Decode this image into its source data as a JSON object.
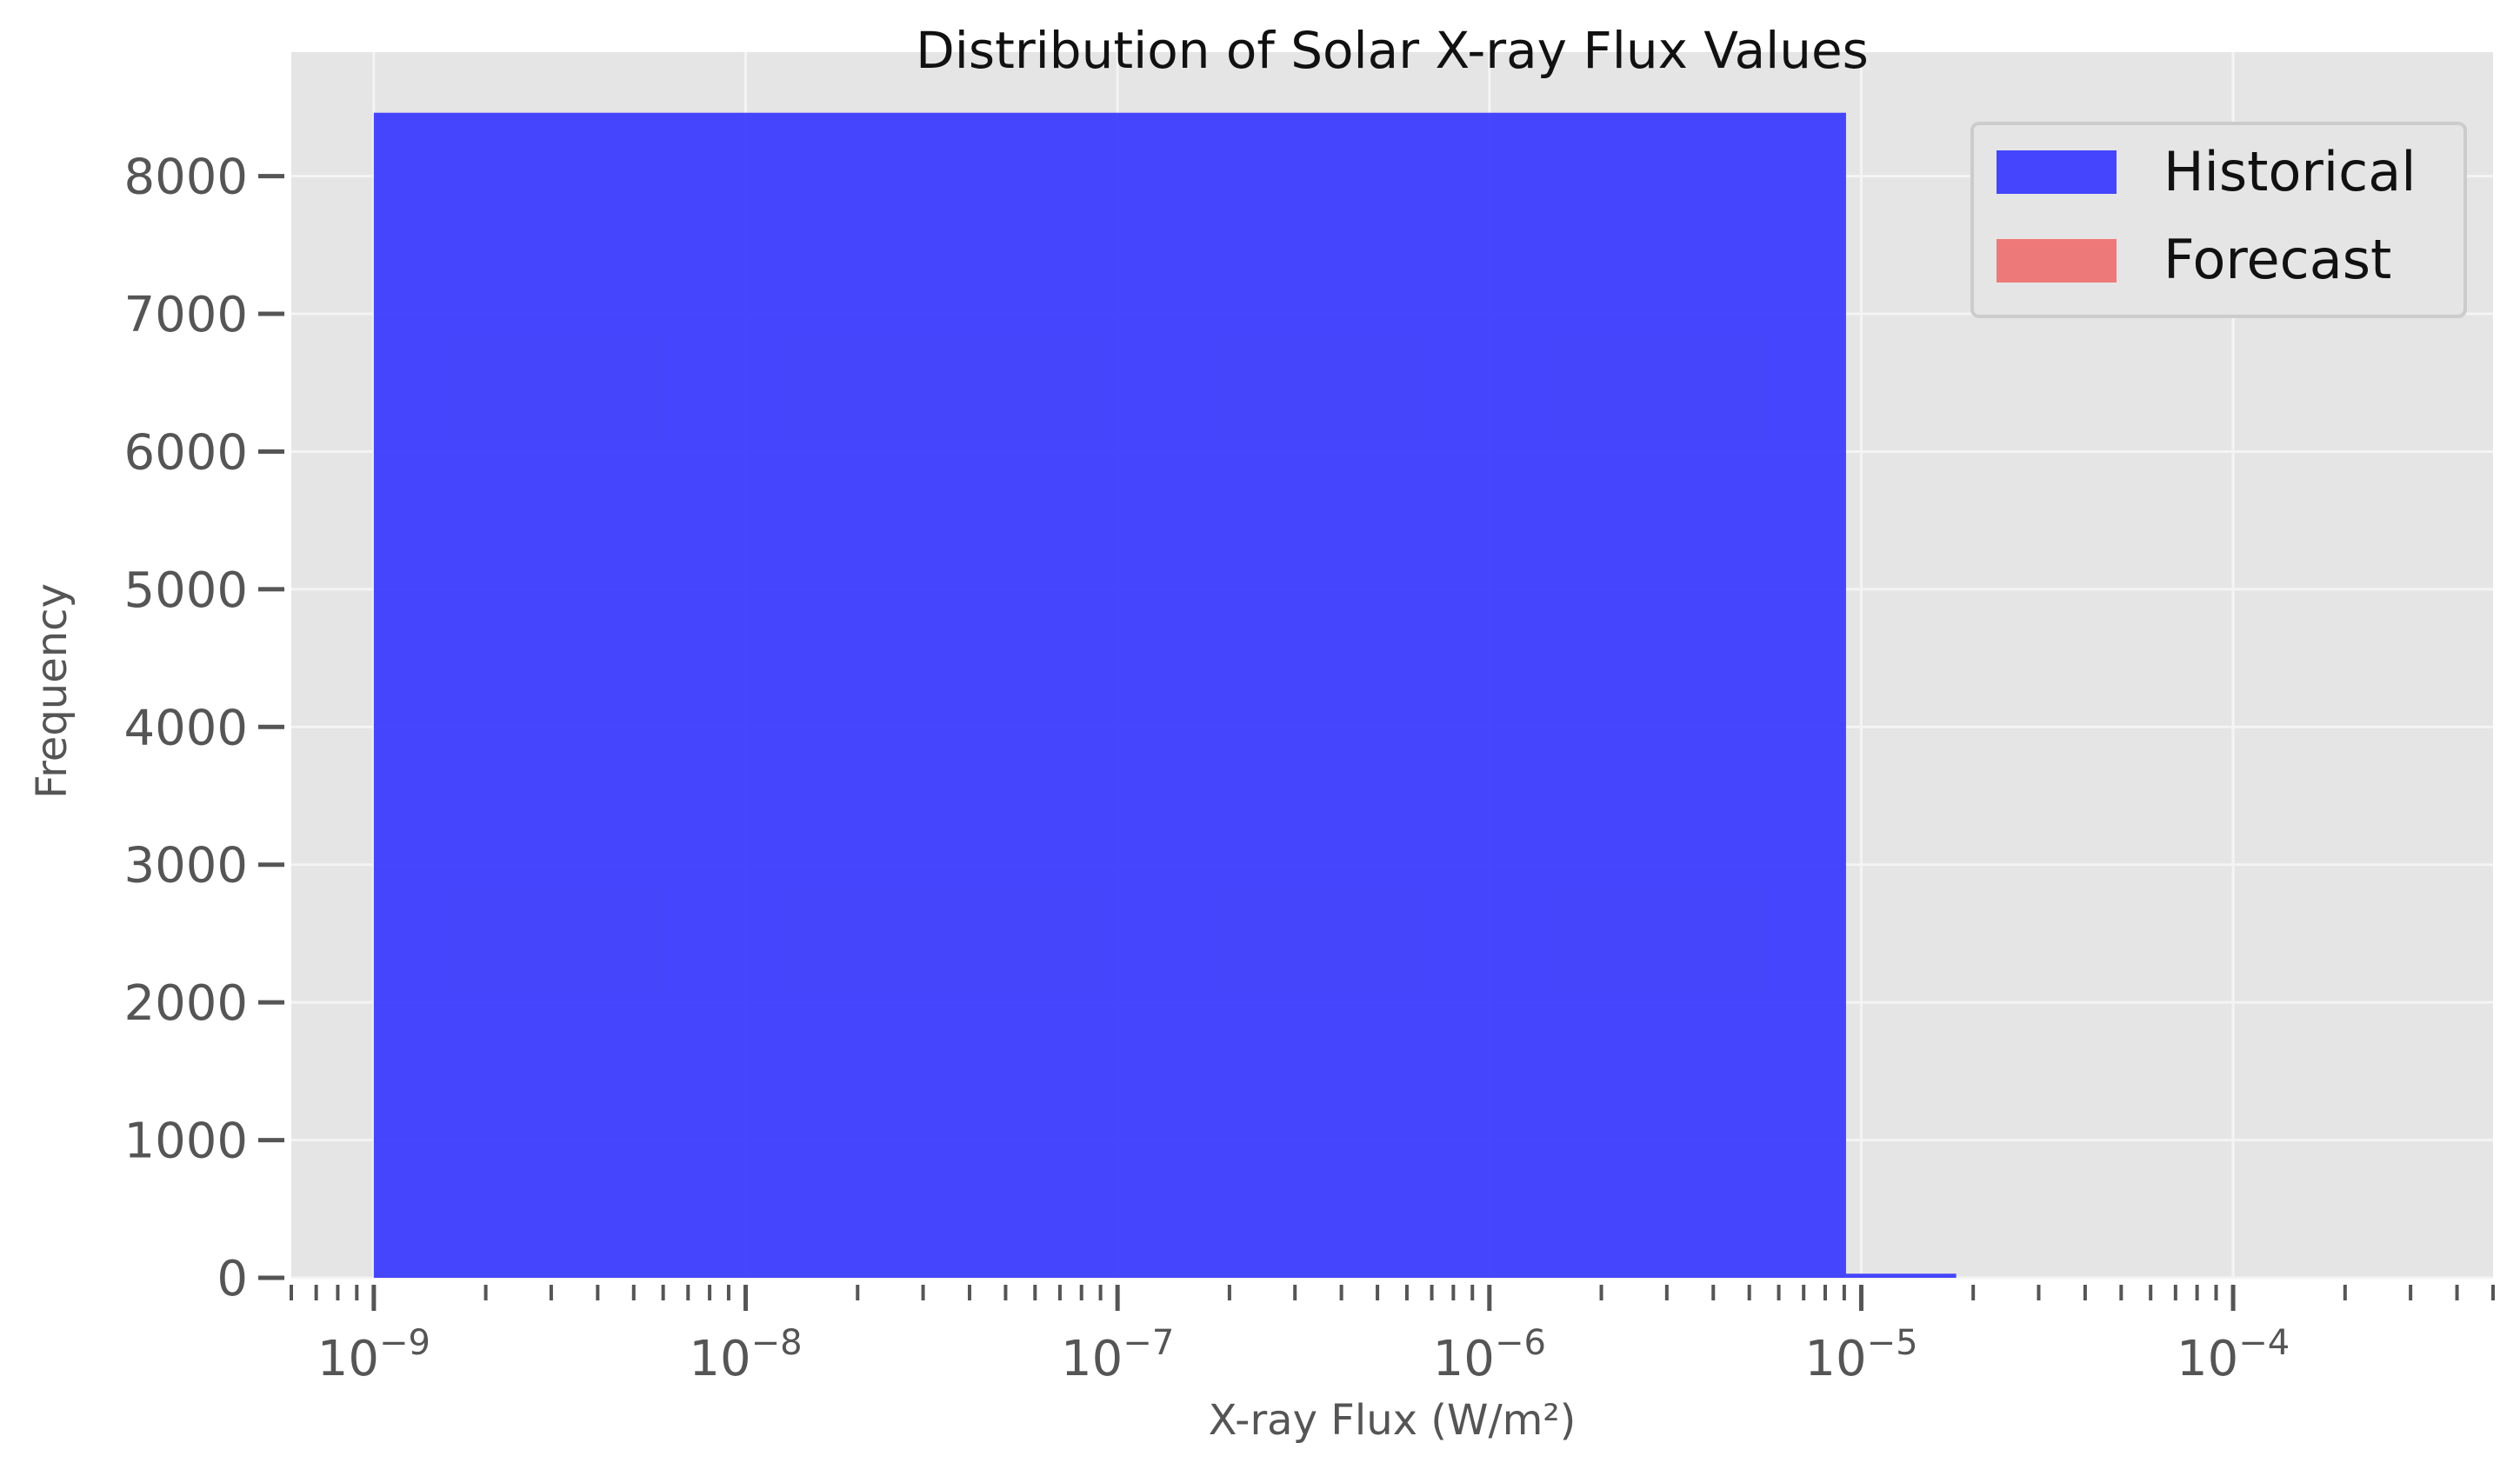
{
  "chart_data": {
    "type": "bar",
    "title": "Distribution of Solar X-ray Flux Values",
    "xlabel": "X-ray Flux (W/m²)",
    "ylabel": "Frequency",
    "x_scale": "log",
    "xlim": [
      6e-10,
      0.0005
    ],
    "ylim": [
      0,
      8900
    ],
    "grid": true,
    "legend_position": "top-right",
    "y_ticks": [
      0,
      1000,
      2000,
      3000,
      4000,
      5000,
      6000,
      7000,
      8000
    ],
    "y_tick_labels": [
      "0",
      "1000",
      "2000",
      "3000",
      "4000",
      "5000",
      "6000",
      "7000",
      "8000"
    ],
    "x_ticks": [
      {
        "value": 1e-09,
        "base": "10",
        "exp": "−9"
      },
      {
        "value": 1e-08,
        "base": "10",
        "exp": "−8"
      },
      {
        "value": 1e-07,
        "base": "10",
        "exp": "−7"
      },
      {
        "value": 1e-06,
        "base": "10",
        "exp": "−6"
      },
      {
        "value": 1e-05,
        "base": "10",
        "exp": "−5"
      },
      {
        "value": 0.0001,
        "base": "10",
        "exp": "−4"
      }
    ],
    "series": [
      {
        "name": "Historical",
        "color": "#3333ff",
        "bins": [
          {
            "x0": 1e-09,
            "x1": 9.1e-06,
            "count": 8460
          },
          {
            "x0": 9.1e-06,
            "x1": 1.8e-05,
            "count": 30
          }
        ]
      },
      {
        "name": "Forecast",
        "color": "#f06666",
        "bins": []
      }
    ]
  },
  "colors": {
    "plot_background": "#e5e5e5",
    "grid": "#f4f4f4",
    "tick": "#555555"
  }
}
